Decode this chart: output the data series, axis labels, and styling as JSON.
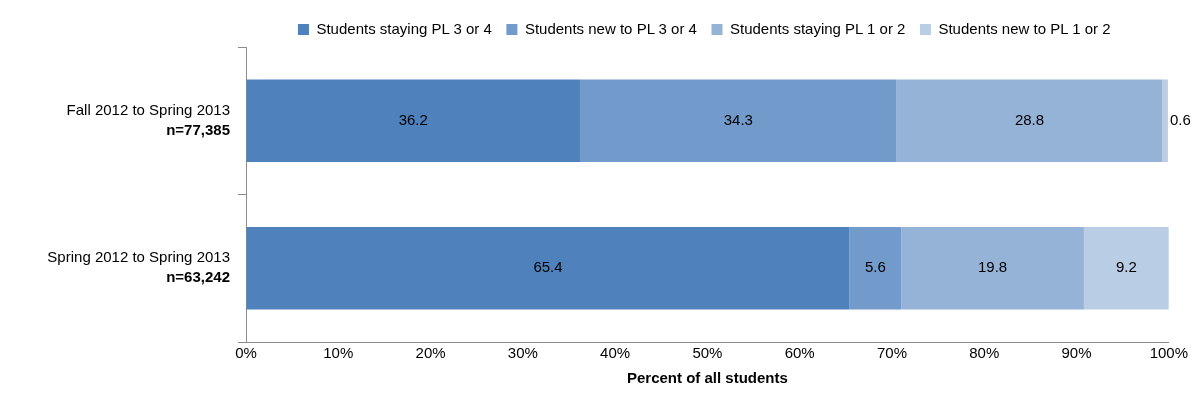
{
  "chart_data": {
    "type": "bar",
    "orientation": "horizontal",
    "stacked": true,
    "categories": [
      "Fall 2012 to Spring 2013\nn=77,385",
      "Spring 2012 to Spring 2013\nn=63,242"
    ],
    "series": [
      {
        "name": "Students staying PL 3 or 4",
        "color": "#4f81bd",
        "values": [
          36.2,
          65.4
        ]
      },
      {
        "name": "Students new to PL 3 or 4",
        "color": "#729aca",
        "values": [
          34.3,
          5.6
        ]
      },
      {
        "name": "Students staying PL 1 or 2",
        "color": "#95b3d7",
        "values": [
          28.8,
          19.8
        ]
      },
      {
        "name": "Students new to PL 1 or 2",
        "color": "#b9cde5",
        "values": [
          0.6,
          9.2
        ]
      }
    ],
    "xlabel": "Percent of all students",
    "xlim": [
      0,
      100
    ],
    "xticks": [
      {
        "value": 0,
        "label": "0%"
      },
      {
        "value": 10,
        "label": "10%"
      },
      {
        "value": 20,
        "label": "20%"
      },
      {
        "value": 30,
        "label": "30%"
      },
      {
        "value": 40,
        "label": "40%"
      },
      {
        "value": 50,
        "label": "50%"
      },
      {
        "value": 60,
        "label": "60%"
      },
      {
        "value": 70,
        "label": "70%"
      },
      {
        "value": 80,
        "label": "80%"
      },
      {
        "value": 90,
        "label": "90%"
      },
      {
        "value": 100,
        "label": "100%"
      }
    ],
    "data_labels": true,
    "legend": "top",
    "grid": false
  }
}
